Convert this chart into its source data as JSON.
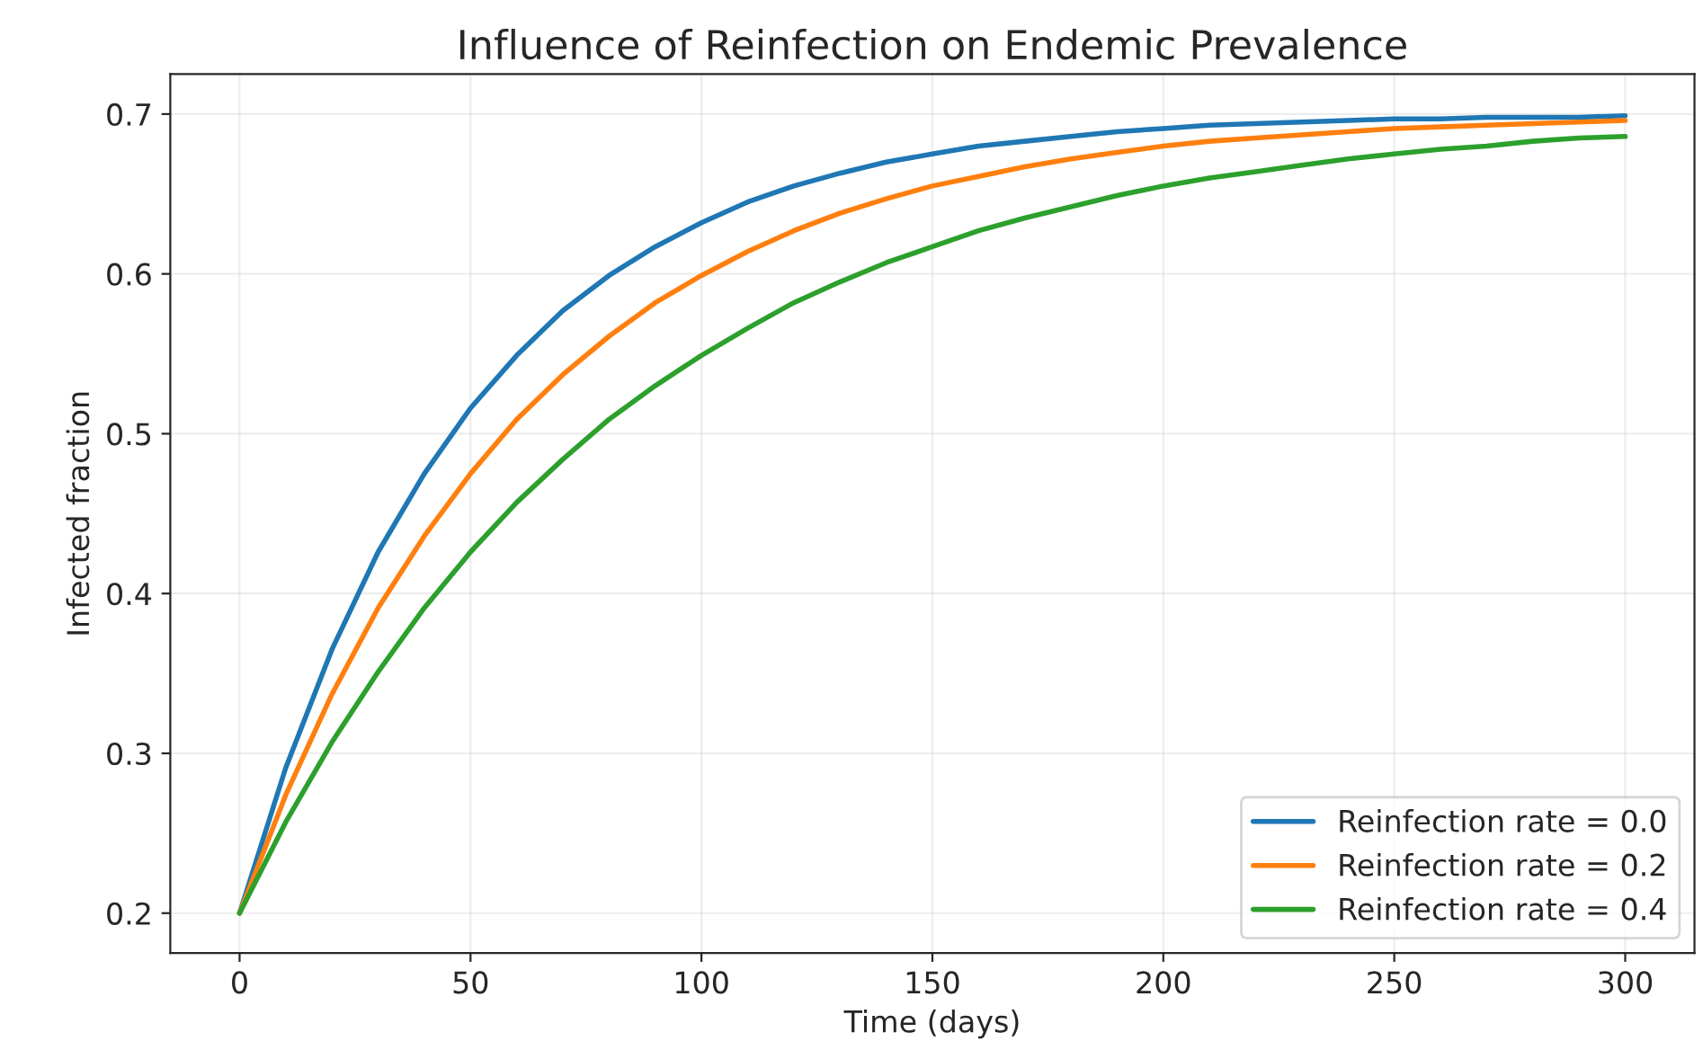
{
  "chart_data": {
    "type": "line",
    "title": "Influence of Reinfection on Endemic Prevalence",
    "xlabel": "Time (days)",
    "ylabel": "Infected fraction",
    "x": [
      0,
      10,
      20,
      30,
      40,
      50,
      60,
      70,
      80,
      90,
      100,
      110,
      120,
      130,
      140,
      150,
      160,
      170,
      180,
      190,
      200,
      210,
      220,
      230,
      240,
      250,
      260,
      270,
      280,
      290,
      300
    ],
    "series": [
      {
        "name": "Reinfection rate = 0.0",
        "color": "#1f77b4",
        "values": [
          0.2,
          0.291,
          0.365,
          0.426,
          0.475,
          0.516,
          0.549,
          0.577,
          0.599,
          0.617,
          0.632,
          0.645,
          0.655,
          0.663,
          0.67,
          0.675,
          0.68,
          0.683,
          0.686,
          0.689,
          0.691,
          0.693,
          0.694,
          0.695,
          0.696,
          0.697,
          0.697,
          0.698,
          0.698,
          0.698,
          0.699
        ]
      },
      {
        "name": "Reinfection rate = 0.2",
        "color": "#ff7f0e",
        "values": [
          0.2,
          0.274,
          0.337,
          0.391,
          0.436,
          0.475,
          0.509,
          0.537,
          0.561,
          0.582,
          0.599,
          0.614,
          0.627,
          0.638,
          0.647,
          0.655,
          0.661,
          0.667,
          0.672,
          0.676,
          0.68,
          0.683,
          0.685,
          0.687,
          0.689,
          0.691,
          0.692,
          0.693,
          0.694,
          0.695,
          0.696
        ]
      },
      {
        "name": "Reinfection rate = 0.4",
        "color": "#2ca02c",
        "values": [
          0.2,
          0.257,
          0.307,
          0.351,
          0.391,
          0.426,
          0.457,
          0.484,
          0.509,
          0.53,
          0.549,
          0.566,
          0.582,
          0.595,
          0.607,
          0.617,
          0.627,
          0.635,
          0.642,
          0.649,
          0.655,
          0.66,
          0.664,
          0.668,
          0.672,
          0.675,
          0.678,
          0.68,
          0.683,
          0.685,
          0.686
        ]
      }
    ],
    "xlim": [
      -15,
      315
    ],
    "xticks": [
      0,
      50,
      100,
      150,
      200,
      250,
      300
    ],
    "ylim": [
      0.175,
      0.725
    ],
    "yticks": [
      0.2,
      0.3,
      0.4,
      0.5,
      0.6,
      0.7
    ],
    "grid": true,
    "legend": "lower right",
    "marker": "none",
    "line_style": "solid"
  }
}
